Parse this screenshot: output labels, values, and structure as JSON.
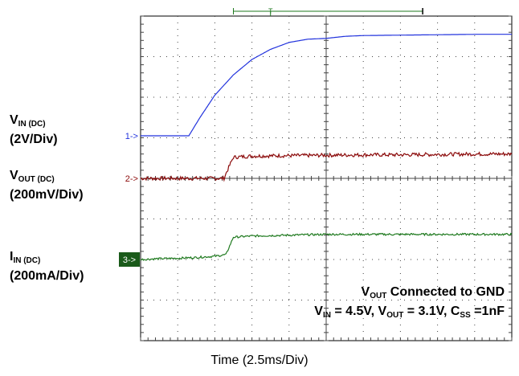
{
  "labels": {
    "vin_main": "V",
    "vin_sub": "IN (DC)",
    "vin_scale": "(2V/Div)",
    "vout_main": "V",
    "vout_sub": "OUT (DC)",
    "vout_scale": "(200mV/Div)",
    "iin_main": "I",
    "iin_sub": "IN (DC)",
    "iin_scale": "(200mA/Div)"
  },
  "annotation": {
    "line1_v": "V",
    "line1_sub": "OUT",
    "line1_rest": " Connected to GND",
    "l2_v1": "V",
    "l2_s1": "IN",
    "l2_t1": " = 4.5V, V",
    "l2_s2": "OUT",
    "l2_t2": " = 3.1V, C",
    "l2_s3": "SS",
    "l2_t3": " =1nF"
  },
  "markers": {
    "ch1": "1->",
    "ch2": "2->",
    "ch3": "3->",
    "trigger": "T"
  },
  "chart_data": {
    "type": "line",
    "xlabel": "Time (2.5ms/Div)",
    "x_unit_per_div": 2.5,
    "x_divisions": 10,
    "y_divisions": 8,
    "grid": true,
    "xlim": [
      0,
      10
    ],
    "ylim": [
      0,
      8
    ],
    "series": [
      {
        "channel": 1,
        "color": "#2233dd",
        "noise": 0,
        "x": [
          0,
          1.3,
          1.6,
          2.0,
          2.5,
          3.0,
          3.5,
          4.0,
          4.5,
          5.0,
          5.5,
          6.0,
          7.0,
          8.0,
          9.0,
          10
        ],
        "y": [
          5.05,
          5.05,
          5.5,
          6.05,
          6.55,
          6.93,
          7.18,
          7.35,
          7.43,
          7.45,
          7.5,
          7.52,
          7.53,
          7.54,
          7.55,
          7.55
        ]
      },
      {
        "channel": 2,
        "color": "#8b0a0a",
        "noise": 0.045,
        "x": [
          0,
          2.25,
          2.3,
          2.5,
          3.0,
          4.0,
          5.0,
          6.0,
          7.0,
          8.0,
          9.0,
          10
        ],
        "y": [
          4.0,
          4.0,
          4.12,
          4.52,
          4.55,
          4.56,
          4.57,
          4.58,
          4.58,
          4.59,
          4.6,
          4.6
        ]
      },
      {
        "channel": 3,
        "color": "#1f7a1f",
        "noise": 0.025,
        "x": [
          0,
          0.5,
          1.0,
          1.5,
          2.0,
          2.3,
          2.5,
          3.0,
          4.0,
          5.0,
          6.0,
          7.0,
          8.0,
          9.0,
          10
        ],
        "y": [
          2.0,
          2.02,
          2.03,
          2.05,
          2.08,
          2.12,
          2.55,
          2.58,
          2.6,
          2.62,
          2.62,
          2.62,
          2.62,
          2.62,
          2.62
        ]
      }
    ],
    "channel_offsets": [
      5.05,
      4.0,
      2.0
    ],
    "trigger_marker": {
      "x_start": 2.5,
      "x_end": 7.6,
      "trigger_x": 3.5
    }
  }
}
